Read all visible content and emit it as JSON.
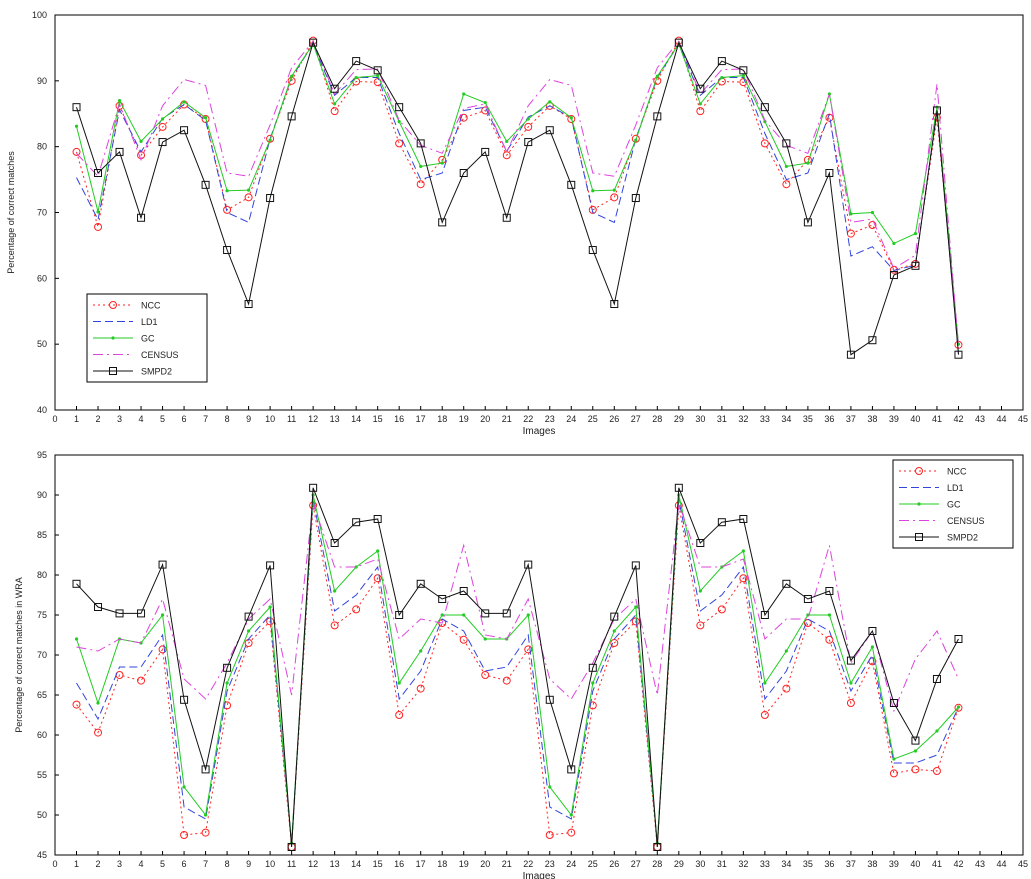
{
  "chart_data": [
    {
      "type": "line",
      "xlabel": "Images",
      "ylabel": "Percentage of correct matches",
      "xlim": [
        0,
        45
      ],
      "ylim": [
        40,
        100
      ],
      "xticks": [
        0,
        1,
        2,
        3,
        4,
        5,
        6,
        7,
        8,
        9,
        10,
        11,
        12,
        13,
        14,
        15,
        16,
        17,
        18,
        19,
        20,
        21,
        22,
        23,
        24,
        25,
        26,
        27,
        28,
        29,
        30,
        31,
        32,
        33,
        34,
        35,
        36,
        37,
        38,
        39,
        40,
        41,
        42,
        43,
        44,
        45
      ],
      "yticks": [
        40,
        50,
        60,
        70,
        80,
        90,
        100
      ],
      "legend_position": "bottom-left",
      "x": [
        1,
        2,
        3,
        4,
        5,
        6,
        7,
        8,
        9,
        10,
        11,
        12,
        13,
        14,
        15,
        16,
        17,
        18,
        19,
        20,
        21,
        22,
        23,
        24,
        25,
        26,
        27,
        28,
        29,
        30,
        31,
        32,
        33,
        34,
        35,
        36,
        37,
        38,
        39,
        40,
        41,
        42
      ],
      "series": [
        {
          "name": "NCC",
          "color": "#ff2222",
          "dash": "2,3",
          "marker": "circle",
          "values": [
            79.2,
            67.8,
            86.2,
            78.7,
            83.0,
            86.4,
            84.2,
            70.4,
            72.3,
            81.2,
            90.0,
            96.1,
            85.4,
            89.9,
            89.8,
            80.5,
            74.3,
            78.0,
            84.4,
            85.5,
            78.7,
            83.0,
            86.2,
            84.2,
            70.4,
            72.3,
            81.2,
            90.0,
            96.1,
            85.4,
            89.9,
            89.8,
            80.5,
            74.3,
            78.0,
            84.4,
            66.8,
            68.1,
            61.3,
            62.2,
            84.4,
            49.9
          ]
        },
        {
          "name": "LD1",
          "color": "#3344dd",
          "dash": "8,4",
          "marker": "none",
          "values": [
            75.3,
            68.9,
            85.6,
            79.2,
            84.3,
            86.4,
            84.0,
            70.0,
            68.5,
            81.2,
            90.5,
            95.6,
            87.8,
            90.5,
            90.5,
            82.0,
            75.0,
            76.0,
            85.5,
            86.0,
            79.3,
            84.5,
            86.2,
            84.4,
            70.0,
            68.5,
            81.2,
            90.5,
            95.6,
            87.8,
            90.5,
            90.5,
            82.0,
            75.0,
            76.0,
            85.0,
            63.4,
            64.8,
            61.2,
            62.0,
            85.5,
            48.5
          ]
        },
        {
          "name": "GC",
          "color": "#22cc22",
          "dash": "none",
          "marker": "dot",
          "values": [
            83.1,
            70.1,
            87.0,
            80.8,
            84.2,
            86.8,
            84.4,
            73.3,
            73.4,
            81.0,
            90.7,
            95.6,
            86.5,
            90.5,
            90.8,
            83.8,
            77.0,
            77.5,
            88.0,
            86.7,
            80.8,
            84.2,
            86.8,
            84.4,
            73.3,
            73.4,
            81.0,
            90.7,
            95.6,
            86.5,
            90.5,
            90.8,
            83.8,
            77.0,
            77.5,
            88.0,
            69.8,
            70.0,
            65.3,
            66.8,
            86.0,
            50.0
          ]
        },
        {
          "name": "CENSUS",
          "color": "#dd44dd",
          "dash": "10,4,2,4",
          "marker": "none",
          "values": [
            79.0,
            75.5,
            86.5,
            78.0,
            86.2,
            90.2,
            89.3,
            76.0,
            75.5,
            83.3,
            92.0,
            96.0,
            88.0,
            91.7,
            91.8,
            84.0,
            80.2,
            79.0,
            85.8,
            86.5,
            79.2,
            86.2,
            90.2,
            89.3,
            76.0,
            75.5,
            83.3,
            92.0,
            96.0,
            88.0,
            91.7,
            91.8,
            84.0,
            80.2,
            79.0,
            88.0,
            68.5,
            69.0,
            61.5,
            63.5,
            89.5,
            49.5
          ]
        },
        {
          "name": "SMPD2",
          "color": "#111111",
          "dash": "none",
          "marker": "square",
          "values": [
            86.0,
            76.0,
            79.2,
            69.2,
            80.7,
            82.5,
            74.2,
            64.3,
            56.1,
            72.2,
            84.6,
            95.8,
            88.8,
            93.0,
            91.6,
            86.0,
            80.5,
            68.5,
            76.0,
            79.2,
            69.2,
            80.7,
            82.5,
            74.2,
            64.3,
            56.1,
            72.2,
            84.6,
            95.8,
            88.8,
            93.0,
            91.6,
            86.0,
            80.5,
            68.5,
            76.0,
            48.4,
            50.6,
            60.5,
            61.9,
            85.5,
            48.4
          ]
        }
      ]
    },
    {
      "type": "line",
      "xlabel": "Images",
      "ylabel": "Percentage of correct matches in WRA",
      "xlim": [
        0,
        45
      ],
      "ylim": [
        45,
        95
      ],
      "xticks": [
        0,
        1,
        2,
        3,
        4,
        5,
        6,
        7,
        8,
        9,
        10,
        11,
        12,
        13,
        14,
        15,
        16,
        17,
        18,
        19,
        20,
        21,
        22,
        23,
        24,
        25,
        26,
        27,
        28,
        29,
        30,
        31,
        32,
        33,
        34,
        35,
        36,
        37,
        38,
        39,
        40,
        41,
        42,
        43,
        44,
        45
      ],
      "yticks": [
        45,
        50,
        55,
        60,
        65,
        70,
        75,
        80,
        85,
        90,
        95
      ],
      "legend_position": "top-right",
      "x": [
        1,
        2,
        3,
        4,
        5,
        6,
        7,
        8,
        9,
        10,
        11,
        12,
        13,
        14,
        15,
        16,
        17,
        18,
        19,
        20,
        21,
        22,
        23,
        24,
        25,
        26,
        27,
        28,
        29,
        30,
        31,
        32,
        33,
        34,
        35,
        36,
        37,
        38,
        39,
        40,
        41,
        42
      ],
      "series": [
        {
          "name": "NCC",
          "color": "#ff2222",
          "dash": "2,3",
          "marker": "circle",
          "values": [
            63.8,
            60.3,
            67.5,
            66.8,
            70.7,
            47.5,
            47.8,
            63.7,
            71.5,
            74.2,
            46.0,
            88.7,
            73.7,
            75.7,
            79.6,
            62.5,
            65.8,
            74.0,
            71.9,
            67.5,
            66.8,
            70.7,
            47.5,
            47.8,
            63.7,
            71.5,
            74.2,
            46.0,
            88.7,
            73.7,
            75.7,
            79.6,
            62.5,
            65.8,
            74.0,
            71.9,
            64.0,
            69.2,
            55.2,
            55.7,
            55.5,
            63.4
          ]
        },
        {
          "name": "LD1",
          "color": "#3344dd",
          "dash": "8,4",
          "marker": "none",
          "values": [
            66.5,
            62.0,
            68.5,
            68.5,
            72.5,
            51.0,
            49.5,
            65.5,
            72.0,
            75.0,
            46.5,
            89.5,
            75.5,
            77.5,
            81.0,
            64.5,
            68.0,
            74.5,
            73.0,
            68.0,
            68.5,
            72.5,
            51.0,
            49.5,
            65.5,
            72.0,
            75.0,
            46.5,
            89.5,
            75.5,
            77.5,
            81.0,
            64.5,
            68.0,
            74.5,
            73.0,
            65.5,
            70.0,
            56.5,
            56.5,
            57.5,
            63.5
          ]
        },
        {
          "name": "GC",
          "color": "#22cc22",
          "dash": "none",
          "marker": "dot",
          "values": [
            72.0,
            64.0,
            72.0,
            71.5,
            75.0,
            53.5,
            50.0,
            66.5,
            73.0,
            76.0,
            46.5,
            90.0,
            78.0,
            81.0,
            83.0,
            66.5,
            70.5,
            75.0,
            75.0,
            72.0,
            72.0,
            75.0,
            53.5,
            50.0,
            66.5,
            73.0,
            76.0,
            46.5,
            90.0,
            78.0,
            81.0,
            83.0,
            66.5,
            70.5,
            75.0,
            75.0,
            66.5,
            71.0,
            57.0,
            58.0,
            60.5,
            63.5
          ]
        },
        {
          "name": "CENSUS",
          "color": "#dd44dd",
          "dash": "10,4,2,4",
          "marker": "none",
          "values": [
            71.0,
            70.5,
            72.0,
            71.5,
            77.0,
            67.0,
            64.5,
            69.0,
            74.5,
            77.0,
            65.0,
            89.0,
            81.0,
            81.0,
            82.0,
            72.0,
            74.5,
            74.0,
            83.7,
            72.5,
            72.0,
            77.0,
            67.0,
            64.5,
            69.0,
            74.5,
            77.0,
            65.0,
            89.0,
            81.0,
            81.0,
            82.0,
            72.0,
            74.5,
            74.5,
            83.7,
            69.0,
            73.0,
            63.0,
            69.5,
            73.0,
            67.0
          ]
        },
        {
          "name": "SMPD2",
          "color": "#111111",
          "dash": "none",
          "marker": "square",
          "values": [
            78.9,
            76.0,
            75.2,
            75.2,
            81.3,
            64.4,
            55.7,
            68.4,
            74.8,
            81.2,
            46.0,
            90.9,
            84.0,
            86.6,
            87.0,
            75.0,
            78.9,
            77.0,
            78.0,
            75.2,
            75.2,
            81.3,
            64.4,
            55.7,
            68.4,
            74.8,
            81.2,
            46.0,
            90.9,
            84.0,
            86.6,
            87.0,
            75.0,
            78.9,
            77.0,
            78.0,
            69.3,
            73.0,
            64.0,
            59.3,
            67.0,
            72.0
          ]
        }
      ]
    }
  ]
}
